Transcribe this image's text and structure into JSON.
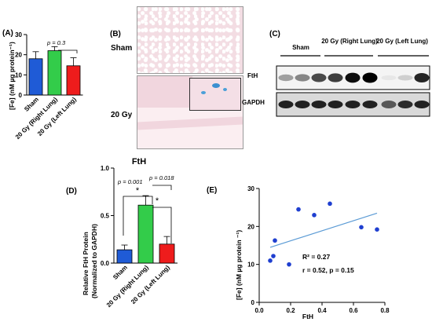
{
  "panel_a": {
    "letter": "(A)",
    "ylabel": "[Fe] (nM µg protein⁻¹)",
    "pvalue": "p = 0.3"
  },
  "panel_b": {
    "letter": "(B)",
    "rows": [
      "Sham",
      "20 Gy"
    ]
  },
  "panel_c": {
    "letter": "(C)",
    "groups": [
      "Sham",
      "20 Gy (Right Lung)",
      "20 Gy (Left Lung)"
    ],
    "rows": [
      "FtH",
      "GAPDH"
    ],
    "band_intensity": {
      "FtH": [
        0.35,
        0.45,
        0.7,
        0.75,
        0.95,
        1.0,
        0.05,
        0.15,
        0.85
      ],
      "GAPDH": [
        0.85,
        0.85,
        0.85,
        0.85,
        0.85,
        0.85,
        0.6,
        0.8,
        0.85
      ]
    }
  },
  "panel_d": {
    "letter": "(D)",
    "title": "FtH",
    "ylabel_lines": [
      "Relative FtH Protein",
      "(Normalized to GAPDH)"
    ],
    "pvalues": [
      "p = 0.001",
      "p = 0.018"
    ],
    "stars": [
      "*",
      "*"
    ]
  },
  "panel_e": {
    "letter": "(E)",
    "ylabel": "[Fe] (nM µg protein ⁻¹)",
    "xlabel": "FtH",
    "r2": "R² = 0.27",
    "r_stat": "r = 0.52, p = 0.15"
  },
  "colors": {
    "blue": "#1f5bd6",
    "green": "#33cc4a",
    "red": "#ee1c1c",
    "line": "#5b9bd5",
    "points": "#1f3fd0"
  },
  "chart_data": [
    {
      "id": "A",
      "type": "bar",
      "categories": [
        "Sham",
        "20 Gy (Right Lung)",
        "20 Gy (Left Lung)"
      ],
      "values": [
        18,
        22,
        14.5
      ],
      "errors": [
        3.5,
        2,
        4
      ],
      "ylabel": "[Fe] (nM µg protein⁻¹)",
      "ylim": [
        0,
        30
      ],
      "yticks": [
        0,
        10,
        20,
        30
      ]
    },
    {
      "id": "D",
      "type": "bar",
      "title": "FtH",
      "categories": [
        "Sham",
        "20 Gy (Right Lung)",
        "20 Gy (Left Lung)"
      ],
      "values": [
        0.14,
        0.61,
        0.2
      ],
      "errors": [
        0.05,
        0.1,
        0.08
      ],
      "ylabel": "Relative FtH Protein (Normalized to GAPDH)",
      "ylim": [
        0,
        1.0
      ],
      "yticks": [
        0.0,
        0.5,
        1.0
      ]
    },
    {
      "id": "E",
      "type": "scatter",
      "x": [
        0.07,
        0.09,
        0.1,
        0.19,
        0.25,
        0.35,
        0.45,
        0.65,
        0.75
      ],
      "y": [
        11,
        12.2,
        16.3,
        10,
        24.5,
        23,
        26,
        19.8,
        19.2
      ],
      "fit_line": {
        "x": [
          0.07,
          0.75
        ],
        "y": [
          14.5,
          23.5
        ]
      },
      "xlabel": "FtH",
      "ylabel": "[Fe] (nM µg protein ⁻¹)",
      "xlim": [
        0,
        0.8
      ],
      "ylim": [
        0,
        30
      ],
      "xticks": [
        0.0,
        0.2,
        0.4,
        0.6,
        0.8
      ],
      "yticks": [
        0,
        10,
        20,
        30
      ]
    }
  ]
}
